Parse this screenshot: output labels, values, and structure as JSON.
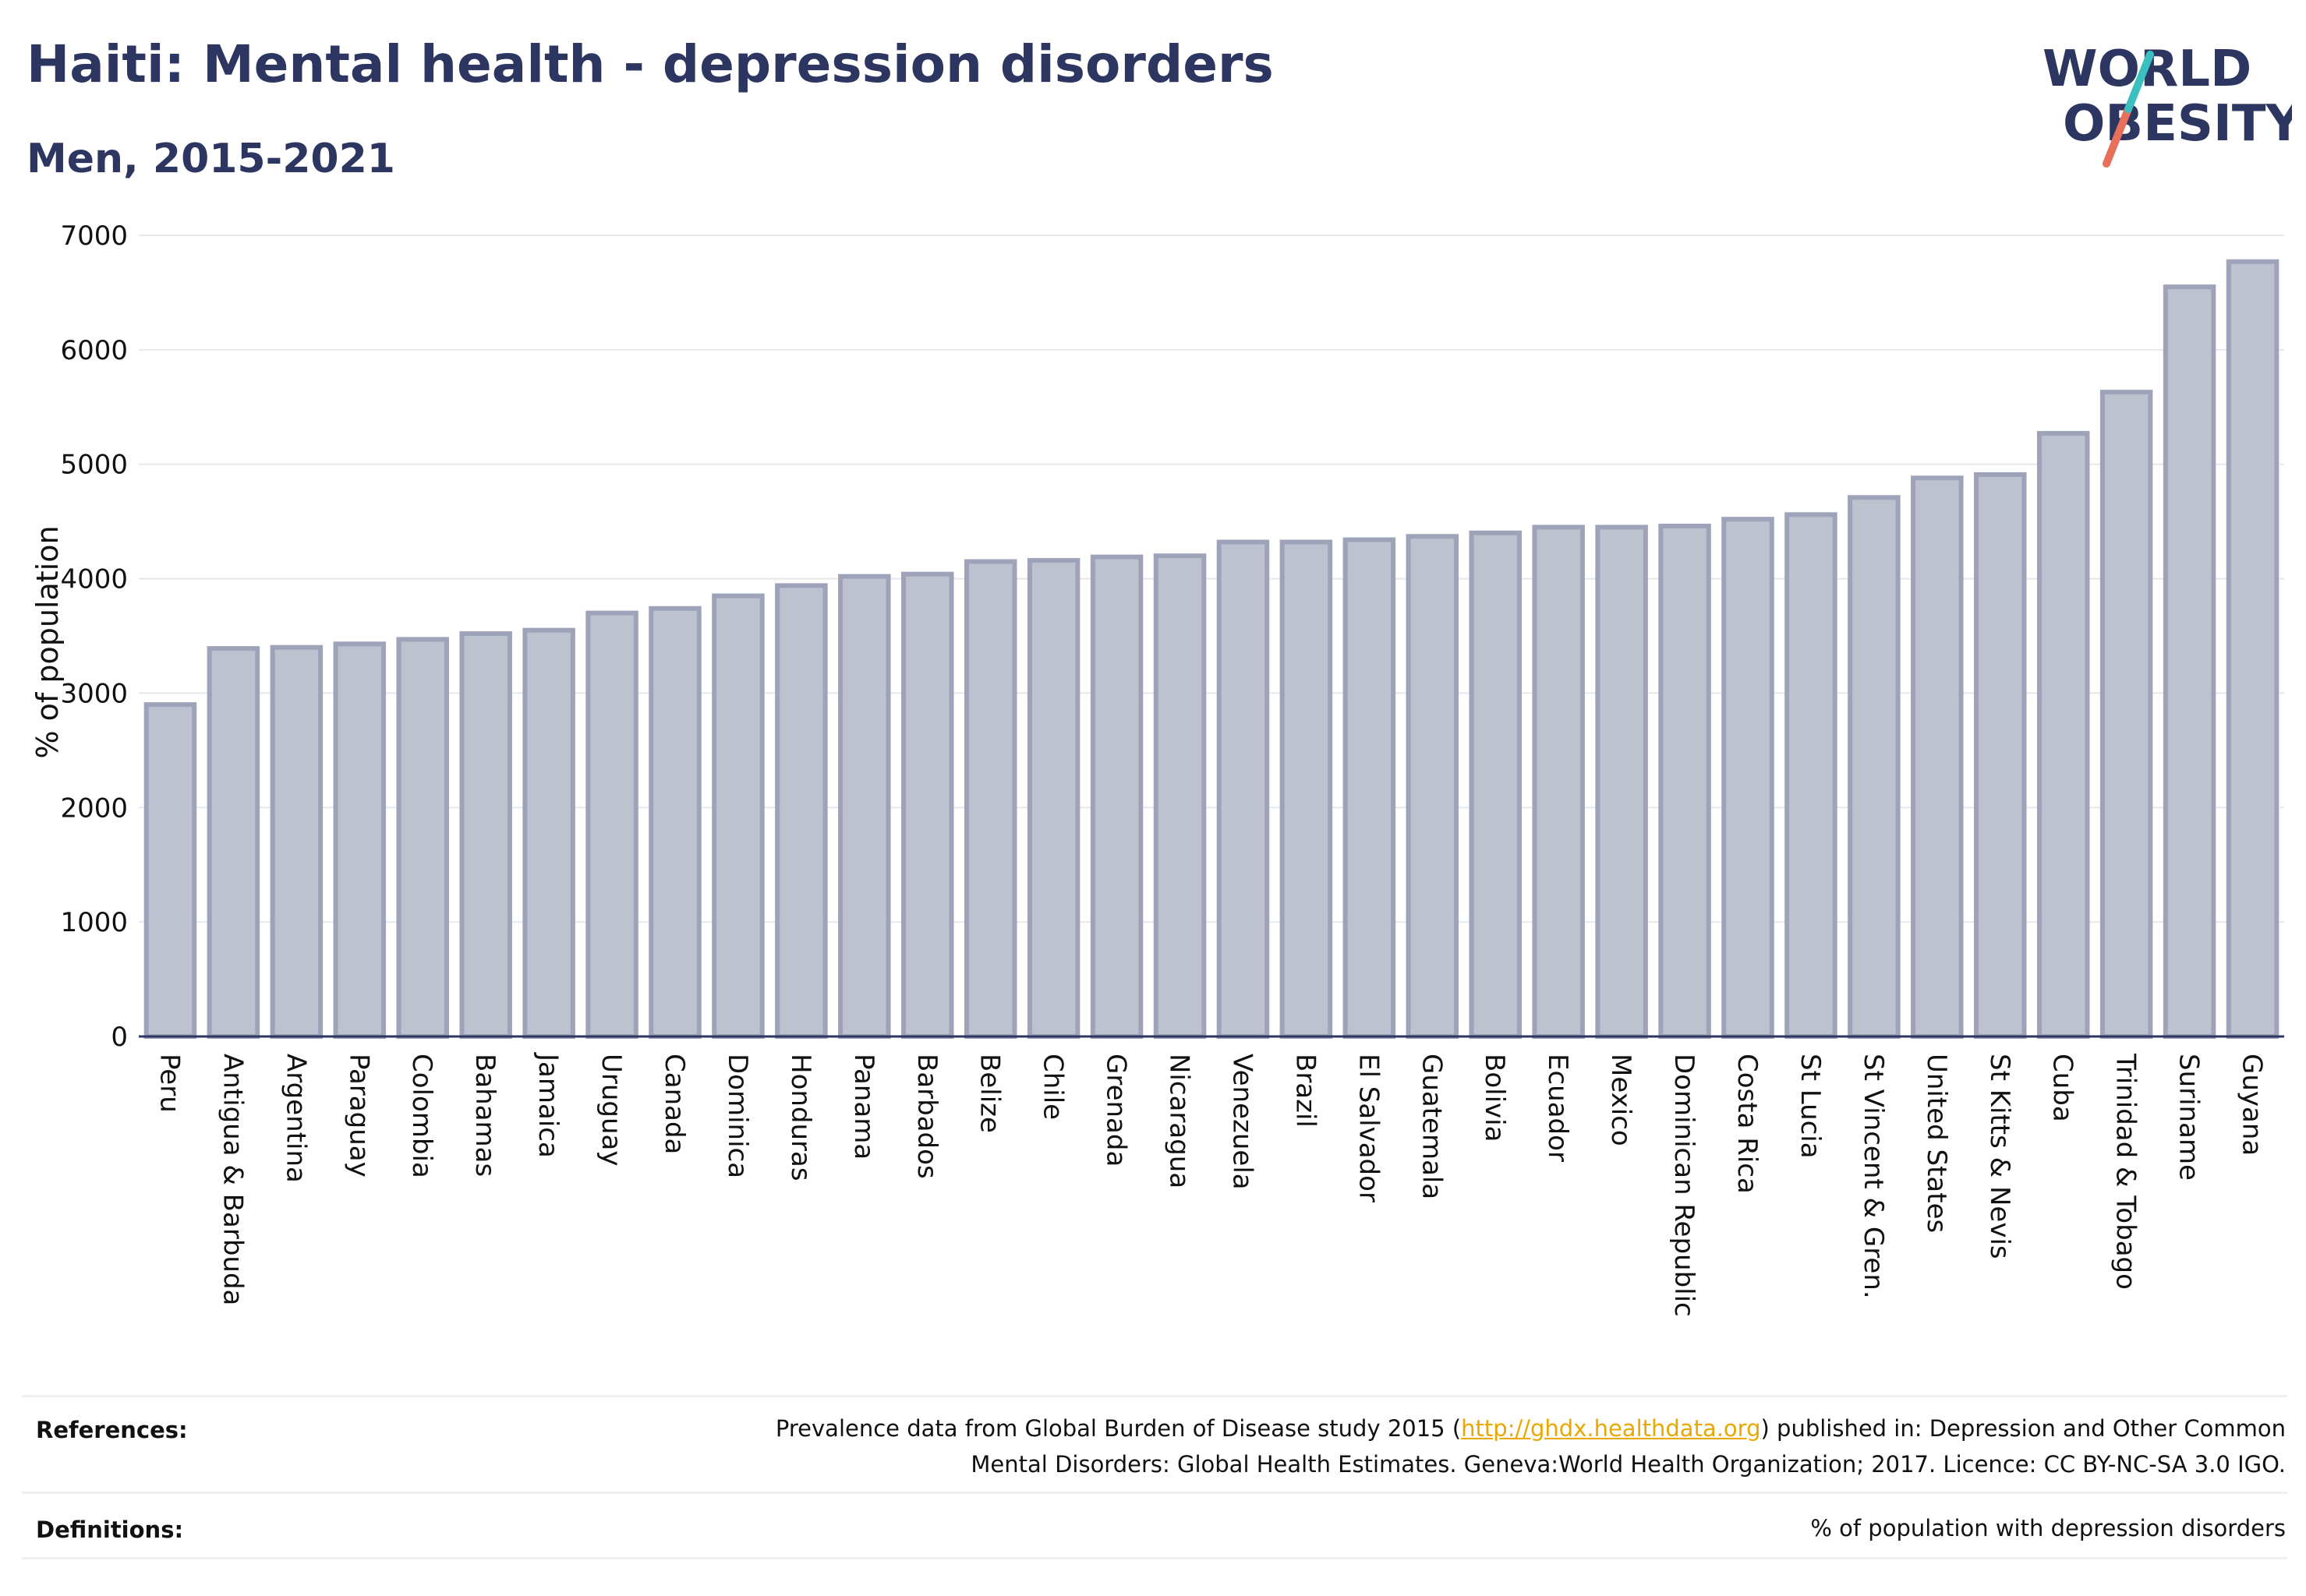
{
  "header": {
    "title": "Haiti: Mental health - depression disorders",
    "subtitle": "Men, 2015-2021"
  },
  "logo": {
    "line1": "WORLD",
    "line2": "OBESITY",
    "text_color": "#2d3561",
    "slash_colors": [
      "#3bbfbf",
      "#e8705a"
    ]
  },
  "chart_data": {
    "type": "bar",
    "ylabel": "% of population",
    "xlabel": "",
    "ylim": [
      0,
      7000
    ],
    "yticks": [
      0,
      1000,
      2000,
      3000,
      4000,
      5000,
      6000,
      7000
    ],
    "grid": true,
    "bar_fill": "#bec1ce",
    "bar_stroke": "#9ea3ba",
    "categories": [
      "Peru",
      "Antigua & Barbuda",
      "Argentina",
      "Paraguay",
      "Colombia",
      "Bahamas",
      "Jamaica",
      "Uruguay",
      "Canada",
      "Dominica",
      "Honduras",
      "Panama",
      "Barbados",
      "Belize",
      "Chile",
      "Grenada",
      "Nicaragua",
      "Venezuela",
      "Brazil",
      "El Salvador",
      "Guatemala",
      "Bolivia",
      "Ecuador",
      "Mexico",
      "Dominican Republic",
      "Costa Rica",
      "St Lucia",
      "St Vincent & Gren.",
      "United States",
      "St Kitts & Nevis",
      "Cuba",
      "Trinidad & Tobago",
      "Suriname",
      "Guyana"
    ],
    "values": [
      2900,
      3390,
      3400,
      3430,
      3470,
      3520,
      3550,
      3700,
      3740,
      3850,
      3940,
      4020,
      4040,
      4150,
      4160,
      4190,
      4200,
      4320,
      4320,
      4340,
      4370,
      4400,
      4450,
      4450,
      4460,
      4520,
      4560,
      4710,
      4880,
      4910,
      5270,
      5630,
      6550,
      6770
    ]
  },
  "footer": {
    "references_label": "References:",
    "references_line1_pre": "Prevalence data from Global Burden of Disease study 2015 (",
    "references_link": "http://ghdx.healthdata.org",
    "references_line1_post": ") published in: Depression and Other Common",
    "references_line2": "Mental Disorders: Global Health Estimates. Geneva:World Health Organization; 2017. Licence: CC BY-NC-SA 3.0 IGO.",
    "definitions_label": "Definitions:",
    "definitions_text": "% of population with depression disorders"
  }
}
